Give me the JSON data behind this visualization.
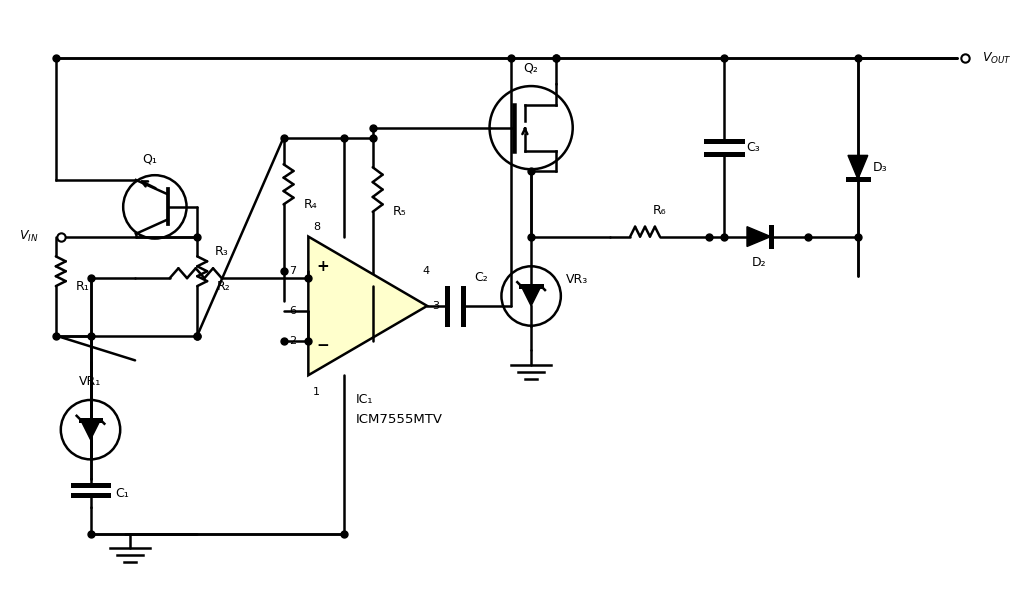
{
  "bg_color": "#ffffff",
  "line_color": "#000000",
  "line_width": 1.8,
  "dot_size": 5,
  "component_colors": {
    "ic_fill": "#ffffcc",
    "ic_edge": "#000000"
  },
  "labels": {
    "VIN": "Vₑₙ",
    "VOUT": "Vₒᵁᵀ",
    "Q1": "Q₁",
    "Q2": "Q₂",
    "VR1": "VR₁",
    "VR3": "VR₃",
    "R1": "R₁",
    "R2": "R₂",
    "R3": "R₃",
    "R4": "R₄",
    "R5": "R₅",
    "R6": "R₆",
    "C1": "C₁",
    "C2": "C₂",
    "C3": "C₃",
    "D2": "D₂",
    "D3": "D₃",
    "IC1_name": "IC₁",
    "IC1_part": "ICM7555MTV"
  }
}
